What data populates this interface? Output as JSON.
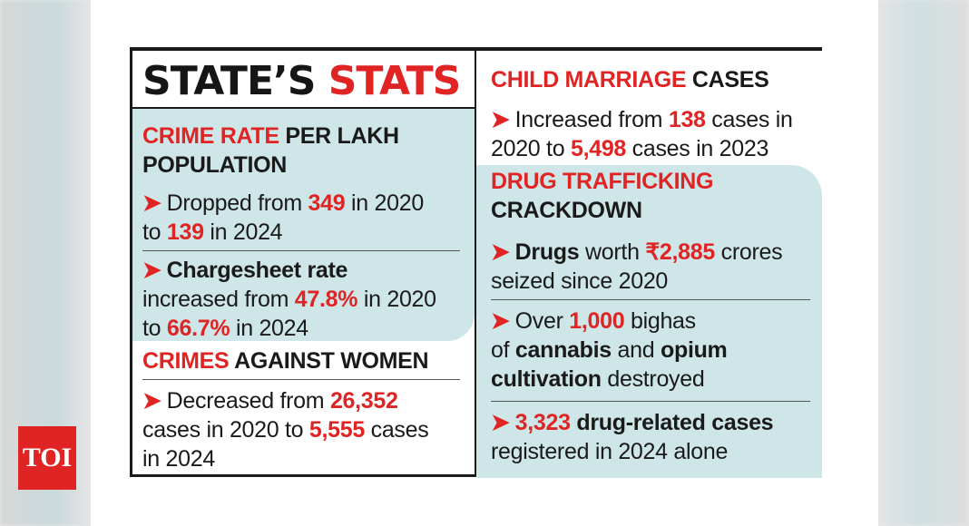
{
  "title": {
    "black": "STATE’S",
    "red": "STATS"
  },
  "left": {
    "crime_rate": {
      "heading_red": "CRIME RATE",
      "heading_black_1": " PER LAKH",
      "heading_black_2": "POPULATION",
      "item1": {
        "pre": "Dropped from ",
        "v1": "349",
        "mid": " in 2020",
        "line2_pre": "to ",
        "v2": "139",
        "post": " in 2024"
      },
      "item2": {
        "bold": "Chargesheet rate",
        "line2_pre": "increased from ",
        "v1": "47.8%",
        "mid": " in 2020",
        "line3_pre": "to ",
        "v2": "66.7%",
        "post": " in 2024"
      }
    },
    "women": {
      "heading_red": "CRIMES",
      "heading_black": " AGAINST WOMEN",
      "item": {
        "pre": "Decreased from ",
        "v1": "26,352",
        "line2_pre": "cases in 2020 to ",
        "v2": "5,555",
        "post": " cases",
        "line3": "in 2024"
      }
    }
  },
  "right": {
    "child": {
      "heading_red": "CHILD MARRIAGE",
      "heading_black": " CASES",
      "item": {
        "pre": "Increased from ",
        "v1": "138",
        "mid": " cases in",
        "line2_pre": "2020 to ",
        "v2": "5,498",
        "post": " cases in 2023"
      }
    },
    "drug": {
      "heading_red": "DRUG TRAFFICKING",
      "heading_black": "CRACKDOWN",
      "item1": {
        "bold": "Drugs",
        "pre": " worth ",
        "v1": "₹2,885",
        "post": " crores",
        "line2": "seized since 2020"
      },
      "item2": {
        "pre": "Over ",
        "v1": "1,000",
        "post": " bighas",
        "line2_pre": "of ",
        "bold1": "cannabis",
        "line2_mid": " and ",
        "bold2": "opium",
        "bold3": "cultivation",
        "line3_post": " destroyed"
      },
      "item3": {
        "v1": "3,323",
        "bold": " drug-related cases",
        "line2": "registered in 2024 alone"
      }
    }
  },
  "arrow": "➤",
  "logo": "TOI"
}
